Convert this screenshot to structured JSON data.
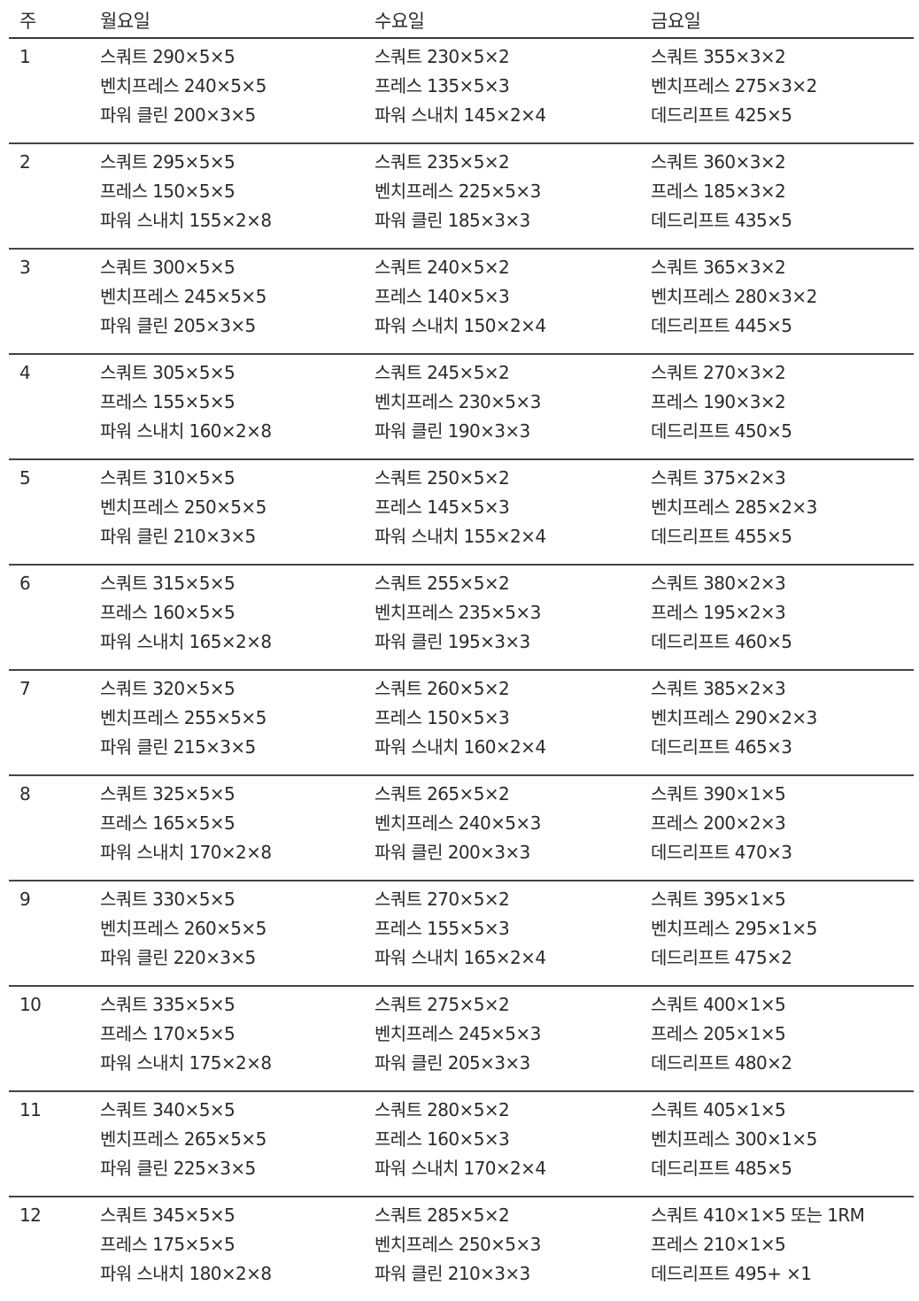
{
  "headers": [
    "주",
    "월요일",
    "수요일",
    "금요일"
  ],
  "weeks": [
    {
      "week": "1",
      "mon": [
        "스쿼트 290×5×5",
        "벤치프레스 240×5×5",
        "파워 클린 200×3×5"
      ],
      "wed": [
        "스쿼트 230×5×2",
        "프레스 135×5×3",
        "파워 스내치 145×2×4"
      ],
      "fri": [
        "스쿼트 355×3×2",
        "벤치프레스 275×3×2",
        "데드리프트 425×5"
      ]
    },
    {
      "week": "2",
      "mon": [
        "스쿼트 295×5×5",
        "프레스 150×5×5",
        "파워 스내치 155×2×8"
      ],
      "wed": [
        "스쿼트 235×5×2",
        "벤치프레스 225×5×3",
        "파워 클린 185×3×3"
      ],
      "fri": [
        "스쿼트 360×3×2",
        "프레스 185×3×2",
        "데드리프트 435×5"
      ]
    },
    {
      "week": "3",
      "mon": [
        "스쿼트 300×5×5",
        "벤치프레스 245×5×5",
        "파워 클린 205×3×5"
      ],
      "wed": [
        "스쿼트 240×5×2",
        "프레스 140×5×3",
        "파워 스내치 150×2×4"
      ],
      "fri": [
        "스쿼트 365×3×2",
        "벤치프레스 280×3×2",
        "데드리프트 445×5"
      ]
    },
    {
      "week": "4",
      "mon": [
        "스쿼트 305×5×5",
        "프레스 155×5×5",
        "파워 스내치 160×2×8"
      ],
      "wed": [
        "스쿼트 245×5×2",
        "벤치프레스 230×5×3",
        "파워 클린 190×3×3"
      ],
      "fri": [
        "스쿼트 270×3×2",
        "프레스 190×3×2",
        "데드리프트 450×5"
      ]
    },
    {
      "week": "5",
      "mon": [
        "스쿼트 310×5×5",
        "벤치프레스 250×5×5",
        "파워 클린 210×3×5"
      ],
      "wed": [
        "스쿼트 250×5×2",
        "프레스 145×5×3",
        "파워 스내치 155×2×4"
      ],
      "fri": [
        "스쿼트 375×2×3",
        "벤치프레스 285×2×3",
        "데드리프트 455×5"
      ]
    },
    {
      "week": "6",
      "mon": [
        "스쿼트 315×5×5",
        "프레스 160×5×5",
        "파워 스내치 165×2×8"
      ],
      "wed": [
        "스쿼트 255×5×2",
        "벤치프레스 235×5×3",
        "파워 클린 195×3×3"
      ],
      "fri": [
        "스쿼트 380×2×3",
        "프레스 195×2×3",
        "데드리프트 460×5"
      ]
    },
    {
      "week": "7",
      "mon": [
        "스쿼트 320×5×5",
        "벤치프레스 255×5×5",
        "파워 클린 215×3×5"
      ],
      "wed": [
        "스쿼트 260×5×2",
        "프레스 150×5×3",
        "파워 스내치 160×2×4"
      ],
      "fri": [
        "스쿼트 385×2×3",
        "벤치프레스 290×2×3",
        "데드리프트 465×3"
      ]
    },
    {
      "week": "8",
      "mon": [
        "스쿼트 325×5×5",
        "프레스 165×5×5",
        "파워 스내치 170×2×8"
      ],
      "wed": [
        "스쿼트 265×5×2",
        "벤치프레스 240×5×3",
        "파워 클린 200×3×3"
      ],
      "fri": [
        "스쿼트 390×1×5",
        "프레스 200×2×3",
        "데드리프트 470×3"
      ]
    },
    {
      "week": "9",
      "mon": [
        "스쿼트 330×5×5",
        "벤치프레스 260×5×5",
        "파워 클린 220×3×5"
      ],
      "wed": [
        "스쿼트 270×5×2",
        "프레스 155×5×3",
        "파워 스내치 165×2×4"
      ],
      "fri": [
        "스쿼트 395×1×5",
        "벤치프레스 295×1×5",
        "데드리프트 475×2"
      ]
    },
    {
      "week": "10",
      "mon": [
        "스쿼트 335×5×5",
        "프레스 170×5×5",
        "파워 스내치 175×2×8"
      ],
      "wed": [
        "스쿼트 275×5×2",
        "벤치프레스 245×5×3",
        "파워 클린 205×3×3"
      ],
      "fri": [
        "스쿼트 400×1×5",
        "프레스 205×1×5",
        "데드리프트 480×2"
      ]
    },
    {
      "week": "11",
      "mon": [
        "스쿼트 340×5×5",
        "벤치프레스 265×5×5",
        "파워 클린 225×3×5"
      ],
      "wed": [
        "스쿼트 280×5×2",
        "프레스 160×5×3",
        "파워 스내치 170×2×4"
      ],
      "fri": [
        "스쿼트 405×1×5",
        "벤치프레스 300×1×5",
        "데드리프트 485×5"
      ]
    },
    {
      "week": "12",
      "mon": [
        "스쿼트 345×5×5",
        "프레스 175×5×5",
        "파워 스내치 180×2×8"
      ],
      "wed": [
        "스쿼트 285×5×2",
        "벤치프레스 250×5×3",
        "파워 클린 210×3×3"
      ],
      "fri": [
        "스쿼트 410×1×5 또는 1RM",
        "프레스 210×1×5",
        "데드리프트 495+ ×1"
      ]
    }
  ]
}
